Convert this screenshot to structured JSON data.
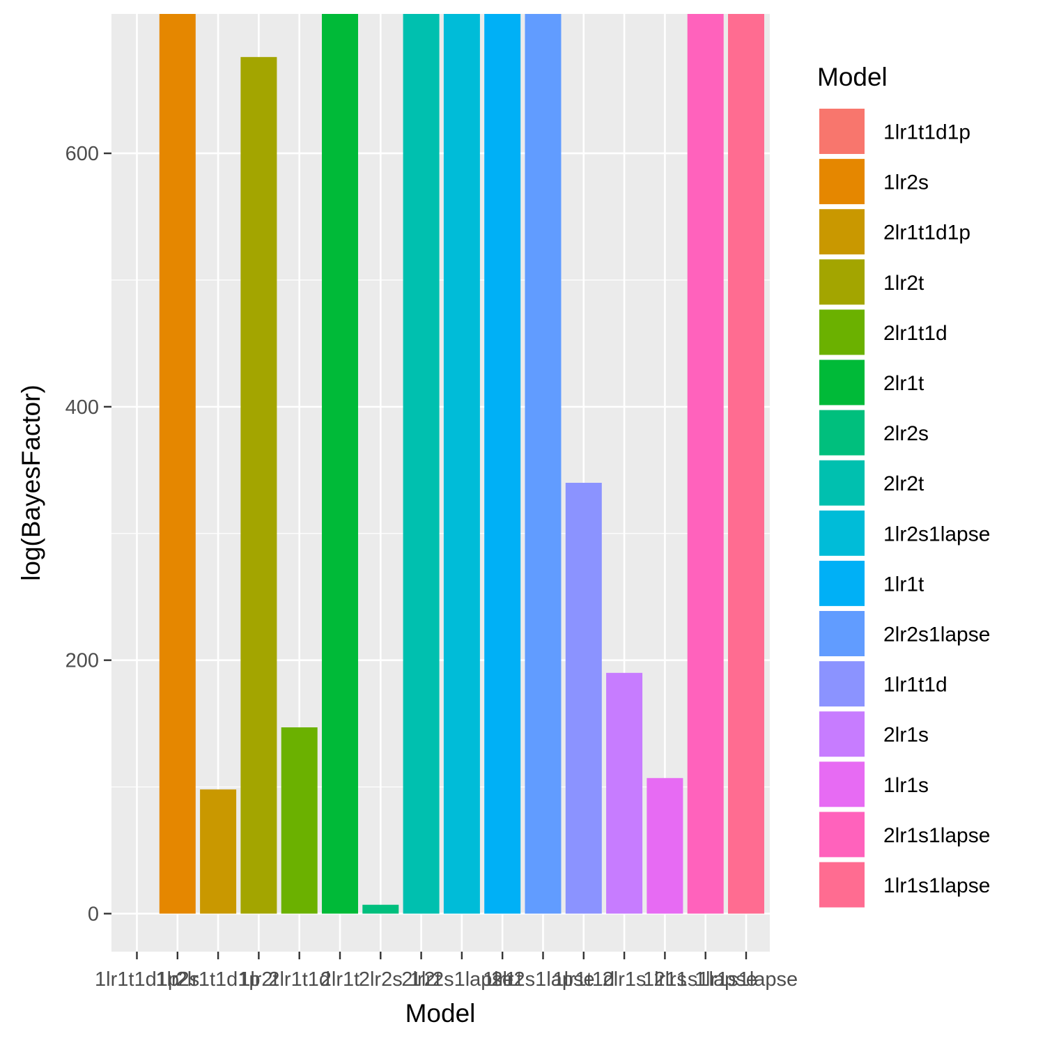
{
  "chart_data": {
    "type": "bar",
    "xlabel": "Model",
    "ylabel": "log(BayesFactor)",
    "ylim": [
      -30,
      710
    ],
    "y_ticks": [
      0,
      200,
      400,
      600
    ],
    "grid": true,
    "legend": {
      "title": "Model",
      "position": "right"
    },
    "categories": [
      "1lr1t1d1p",
      "1lr2s",
      "2lr1t1d1p",
      "1lr2t",
      "2lr1t1d",
      "2lr1t",
      "2lr2s",
      "2lr2t",
      "1lr2s1lapse",
      "1lr1t",
      "2lr2s1lapse",
      "1lr1t1d",
      "2lr1s",
      "1lr1s",
      "2lr1s1lapse",
      "1lr1s1lapse"
    ],
    "values": [
      0,
      710,
      98,
      676,
      147,
      710,
      7,
      710,
      710,
      710,
      710,
      340,
      190,
      107,
      710,
      710
    ],
    "colors": [
      "#F8766D",
      "#E58700",
      "#C99800",
      "#A3A500",
      "#6BB100",
      "#00BA38",
      "#00BF7D",
      "#00C0AF",
      "#00BCD8",
      "#00B0F6",
      "#619CFF",
      "#8B93FF",
      "#C77CFF",
      "#E76BF3",
      "#FF62BC",
      "#FF6C91"
    ]
  }
}
